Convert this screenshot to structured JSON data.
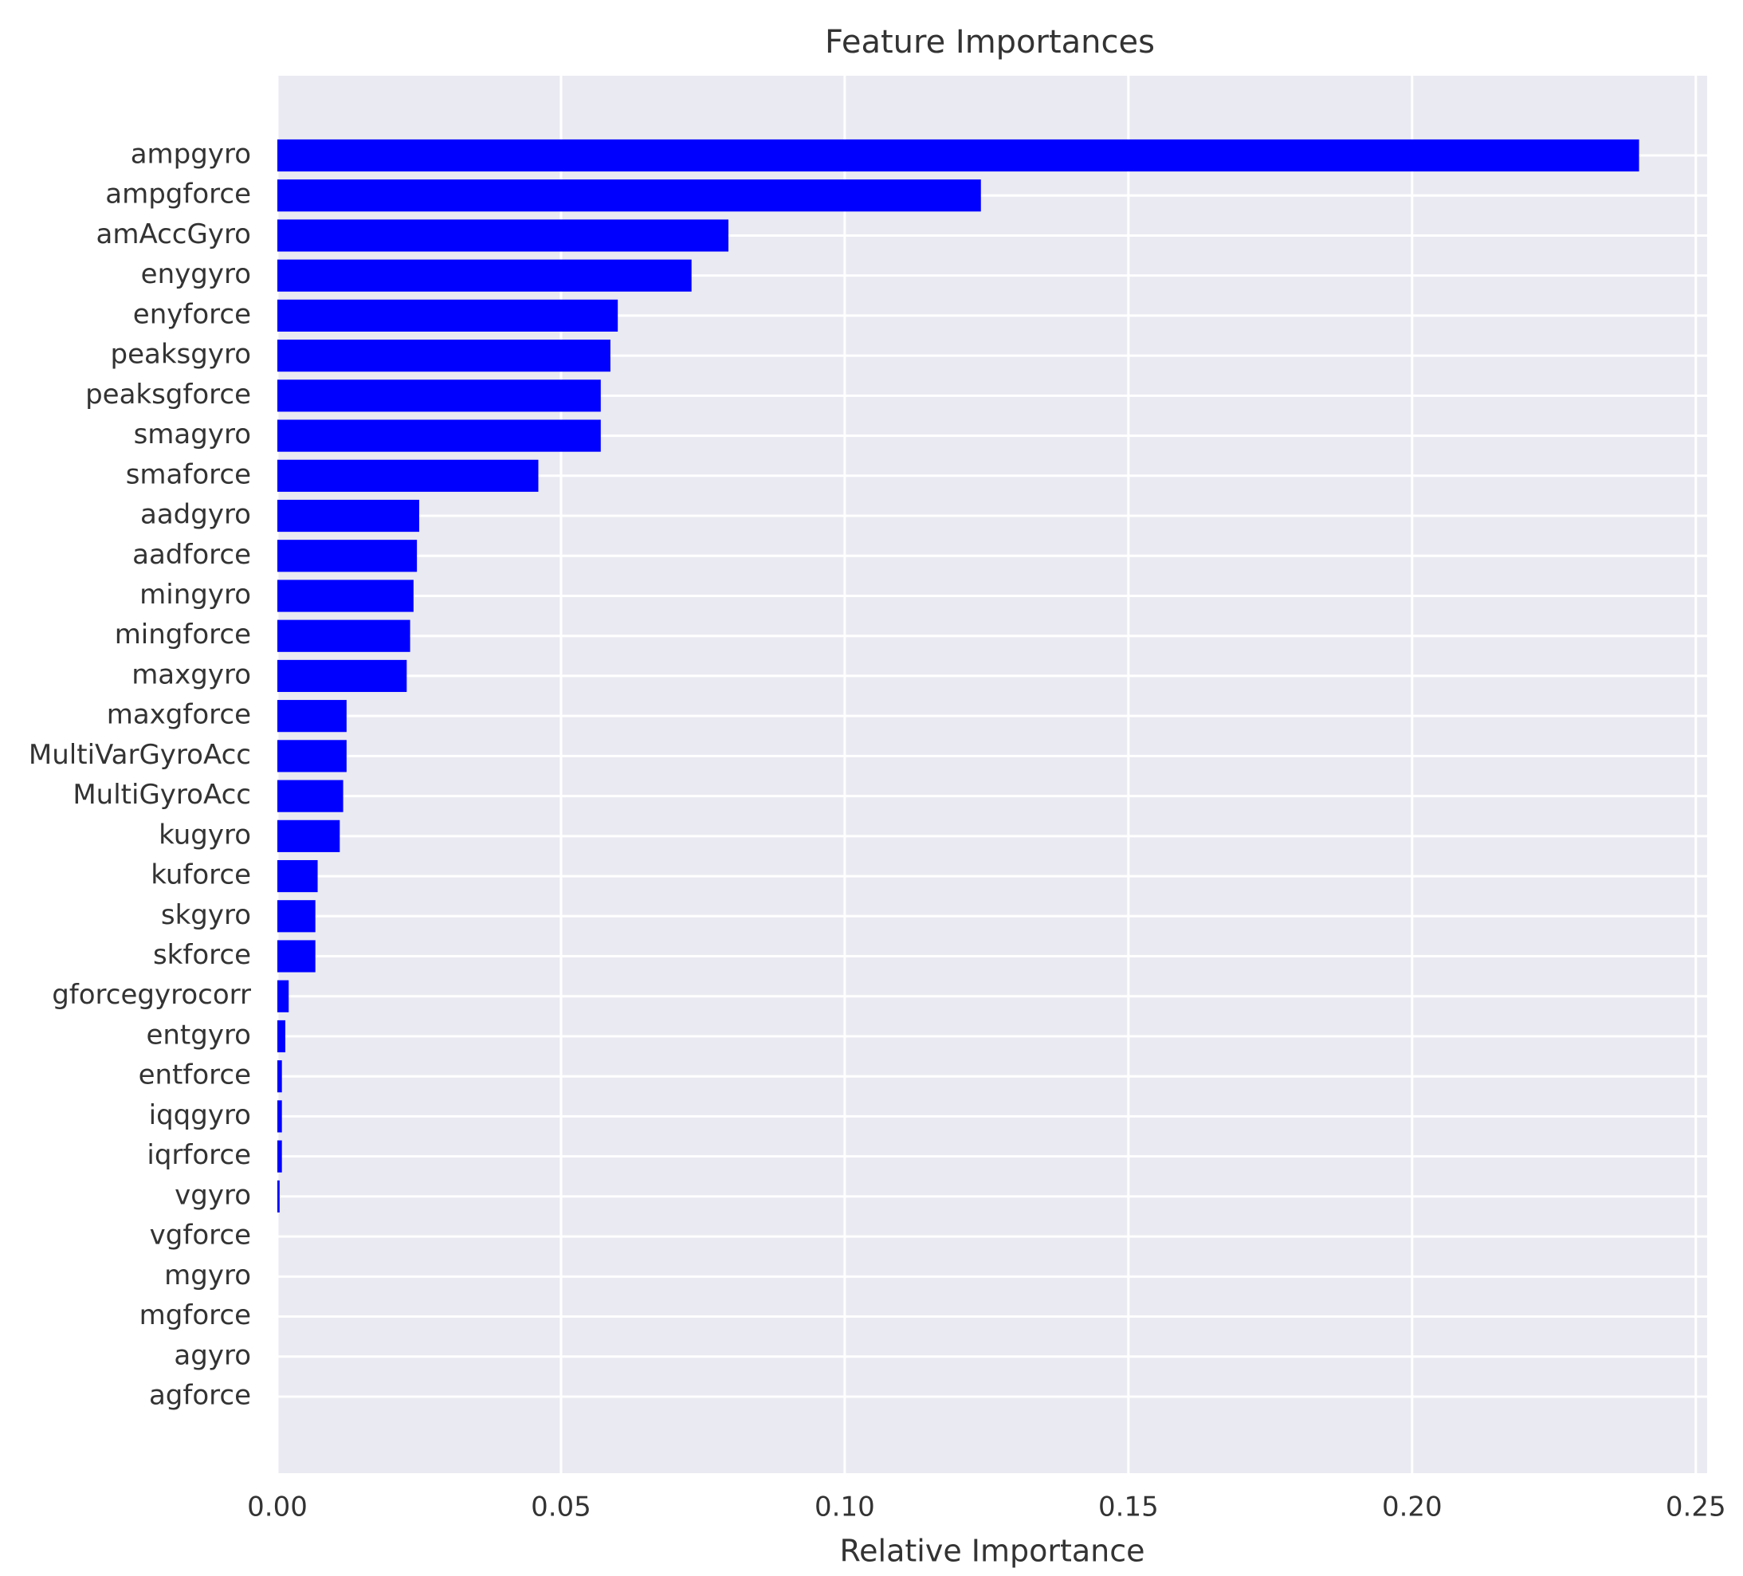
{
  "chart_data": {
    "type": "barh",
    "title": "Feature Importances",
    "x_label": "Relative Importance",
    "categories": [
      "ampgyro",
      "ampgforce",
      "amAccGyro",
      "enygyro",
      "enyforce",
      "peaksgyro",
      "peaksgforce",
      "smagyro",
      "smaforce",
      "aadgyro",
      "aadforce",
      "mingyro",
      "mingforce",
      "maxgyro",
      "maxgforce",
      "MultiVarGyroAcc",
      "MultiGyroAcc",
      "kugyro",
      "kuforce",
      "skgyro",
      "skforce",
      "gforcegyrocorr",
      "entgyro",
      "entforce",
      "iqqgyro",
      "iqrforce",
      "vgyro",
      "vgforce",
      "mgyro",
      "mgforce",
      "agyro",
      "agforce"
    ],
    "values": [
      0.24,
      0.124,
      0.0795,
      0.073,
      0.06,
      0.0587,
      0.057,
      0.057,
      0.046,
      0.025,
      0.0246,
      0.024,
      0.0234,
      0.0228,
      0.0122,
      0.0122,
      0.0116,
      0.011,
      0.0071,
      0.0067,
      0.0067,
      0.002,
      0.0014,
      0.0008,
      0.0008,
      0.0008,
      0.0004,
      0,
      0,
      0,
      0,
      0
    ],
    "color": "#0000ff",
    "xlim": [
      0,
      0.252
    ],
    "xticks": [
      {
        "value": 0,
        "label": "0.00"
      },
      {
        "value": 0.05,
        "label": "0.05"
      },
      {
        "value": 0.1,
        "label": "0.10"
      },
      {
        "value": 0.15,
        "label": "0.15"
      },
      {
        "value": 0.2,
        "label": "0.20"
      },
      {
        "value": 0.25,
        "label": "0.25"
      }
    ],
    "grid": true
  }
}
